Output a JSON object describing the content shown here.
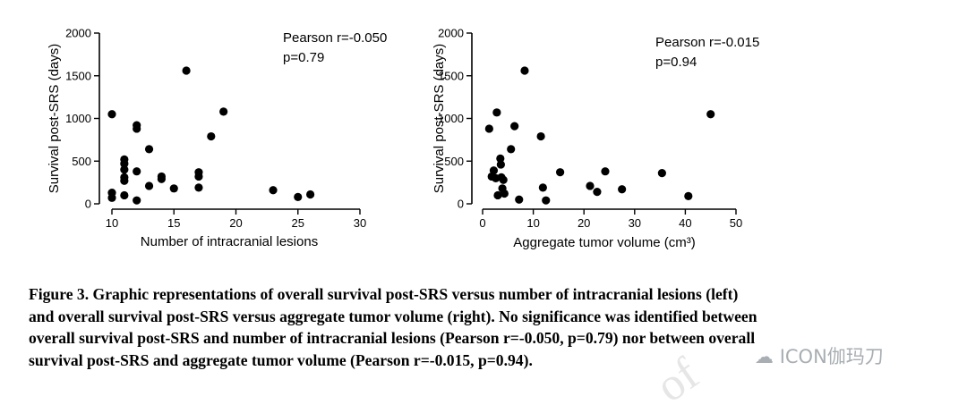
{
  "chart_data": [
    {
      "type": "scatter",
      "title": "",
      "xlabel": "Number of intracranial lesions",
      "ylabel": "Survival post-SRS (days)",
      "xlim": [
        10,
        30
      ],
      "ylim": [
        0,
        2000
      ],
      "xticks": [
        "10",
        "15",
        "20",
        "25",
        "30"
      ],
      "yticks": [
        "0",
        "500",
        "1000",
        "1500",
        "2000"
      ],
      "grid": false,
      "annotation": [
        "Pearson r=-0.050",
        "p=0.79"
      ],
      "points": [
        {
          "x": 10,
          "y": 1050
        },
        {
          "x": 10,
          "y": 130
        },
        {
          "x": 10,
          "y": 70
        },
        {
          "x": 11,
          "y": 520
        },
        {
          "x": 11,
          "y": 470
        },
        {
          "x": 11,
          "y": 400
        },
        {
          "x": 11,
          "y": 310
        },
        {
          "x": 11,
          "y": 270
        },
        {
          "x": 11,
          "y": 100
        },
        {
          "x": 12,
          "y": 920
        },
        {
          "x": 12,
          "y": 880
        },
        {
          "x": 12,
          "y": 380
        },
        {
          "x": 12,
          "y": 40
        },
        {
          "x": 13,
          "y": 640
        },
        {
          "x": 13,
          "y": 210
        },
        {
          "x": 14,
          "y": 320
        },
        {
          "x": 14,
          "y": 290
        },
        {
          "x": 15,
          "y": 180
        },
        {
          "x": 16,
          "y": 1560
        },
        {
          "x": 17,
          "y": 370
        },
        {
          "x": 17,
          "y": 320
        },
        {
          "x": 17,
          "y": 190
        },
        {
          "x": 18,
          "y": 790
        },
        {
          "x": 19,
          "y": 1080
        },
        {
          "x": 23,
          "y": 160
        },
        {
          "x": 25,
          "y": 80
        },
        {
          "x": 26,
          "y": 110
        }
      ]
    },
    {
      "type": "scatter",
      "title": "",
      "xlabel": "Aggregate tumor volume (cm³)",
      "ylabel": "Survival post-SRS (days)",
      "xlim": [
        0,
        50
      ],
      "ylim": [
        0,
        2000
      ],
      "xticks": [
        "0",
        "10",
        "20",
        "30",
        "40",
        "50"
      ],
      "yticks": [
        "0",
        "500",
        "1000",
        "1500",
        "2000"
      ],
      "grid": false,
      "annotation": [
        "Pearson r=-0.015",
        "p=0.94"
      ],
      "points": [
        {
          "x": 1.3,
          "y": 880
        },
        {
          "x": 1.8,
          "y": 320
        },
        {
          "x": 2.2,
          "y": 390
        },
        {
          "x": 2.6,
          "y": 300
        },
        {
          "x": 2.8,
          "y": 1070
        },
        {
          "x": 3.0,
          "y": 100
        },
        {
          "x": 3.5,
          "y": 530
        },
        {
          "x": 3.6,
          "y": 460
        },
        {
          "x": 3.7,
          "y": 310
        },
        {
          "x": 3.9,
          "y": 180
        },
        {
          "x": 4.1,
          "y": 280
        },
        {
          "x": 4.3,
          "y": 120
        },
        {
          "x": 5.6,
          "y": 640
        },
        {
          "x": 6.3,
          "y": 910
        },
        {
          "x": 7.2,
          "y": 50
        },
        {
          "x": 8.3,
          "y": 1560
        },
        {
          "x": 11.5,
          "y": 790
        },
        {
          "x": 11.9,
          "y": 190
        },
        {
          "x": 12.5,
          "y": 40
        },
        {
          "x": 15.3,
          "y": 370
        },
        {
          "x": 21.2,
          "y": 210
        },
        {
          "x": 22.6,
          "y": 140
        },
        {
          "x": 24.2,
          "y": 380
        },
        {
          "x": 27.5,
          "y": 170
        },
        {
          "x": 35.4,
          "y": 360
        },
        {
          "x": 40.6,
          "y": 90
        },
        {
          "x": 45.0,
          "y": 1050
        }
      ]
    }
  ],
  "caption": {
    "lines": [
      "Figure 3. Graphic representations of overall survival post-SRS versus number of intracranial lesions (left)",
      "and overall survival post-SRS versus aggregate tumor volume (right). No significance was identified between",
      "overall survival post-SRS and number of intracranial lesions (Pearson r=-0.050, p=0.79) nor between overall",
      "survival post-SRS and aggregate tumor volume (Pearson r=-0.015, p=0.94)."
    ]
  },
  "watermark": {
    "text": "ICON伽玛刀",
    "icon": "wechat-icon"
  }
}
